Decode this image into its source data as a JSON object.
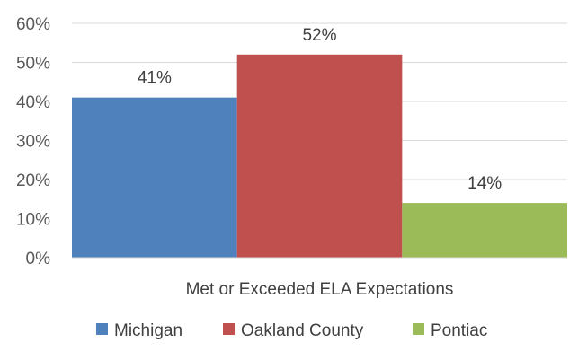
{
  "chart_data": {
    "type": "bar",
    "categories": [
      "Met or Exceeded ELA Expectations"
    ],
    "series": [
      {
        "name": "Michigan",
        "values": [
          41
        ],
        "label": "41%",
        "color": "#4F81BD"
      },
      {
        "name": "Oakland County",
        "values": [
          52
        ],
        "label": "52%",
        "color": "#C0504D"
      },
      {
        "name": "Pontiac",
        "values": [
          14
        ],
        "label": "14%",
        "color": "#9BBB59"
      }
    ],
    "ylim": [
      0,
      60
    ],
    "yticks": [
      0,
      10,
      20,
      30,
      40,
      50,
      60
    ],
    "ytick_labels": [
      "0%",
      "10%",
      "20%",
      "30%",
      "40%",
      "50%",
      "60%"
    ],
    "grid": true,
    "legend": "bottom",
    "title": "",
    "xlabel": "",
    "ylabel": ""
  }
}
